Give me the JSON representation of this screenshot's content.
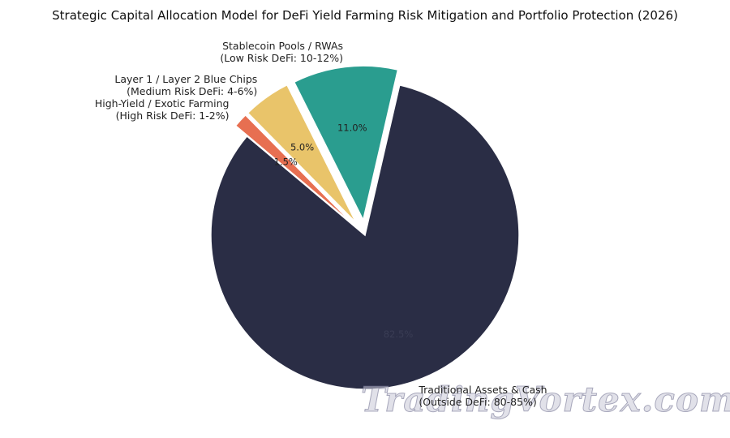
{
  "chart_data": {
    "type": "pie",
    "title": "Strategic Capital Allocation Model for DeFi Yield Farming Risk Mitigation and Portfolio Protection (2026)",
    "categories": [
      "Traditional Assets & Cash\n(Outside DeFi: 80-85%)",
      "Stablecoin Pools / RWAs\n(Low Risk DeFi: 10-12%)",
      "Layer 1 / Layer 2 Blue Chips\n(Medium Risk DeFi: 4-6%)",
      "High-Yield / Exotic Farming\n(High Risk DeFi: 1-2%)"
    ],
    "values": [
      82.5,
      11.0,
      5.0,
      1.5
    ],
    "value_labels": [
      "82.5%",
      "11.0%",
      "5.0%",
      "1.5%"
    ],
    "colors": [
      "#2a2d45",
      "#2a9d8f",
      "#e9c46a",
      "#e76f51"
    ]
  },
  "watermark": "TradingVortex.com"
}
